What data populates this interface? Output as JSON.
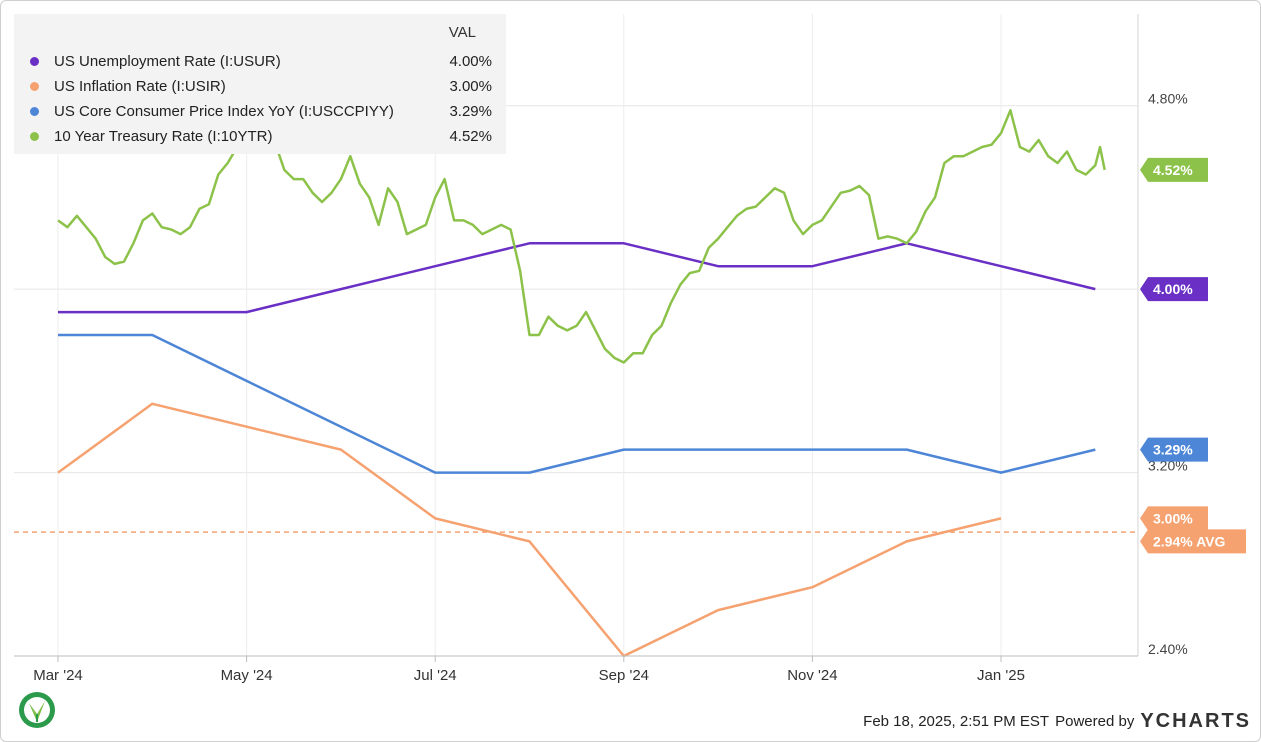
{
  "legend": {
    "header": "VAL",
    "items": [
      {
        "name": "US Unemployment Rate (I:USUR)",
        "value": "4.00%",
        "color": "#6a2fc4"
      },
      {
        "name": "US Inflation Rate (I:USIR)",
        "value": "3.00%",
        "color": "#f5a270"
      },
      {
        "name": "US Core Consumer Price Index YoY (I:USCCPIYY)",
        "value": "3.29%",
        "color": "#4d86d6"
      },
      {
        "name": "10 Year Treasury Rate (I:10YTR)",
        "value": "4.52%",
        "color": "#8cc24a"
      }
    ]
  },
  "footer": {
    "timestamp": "Feb 18, 2025, 2:51 PM EST",
    "powered": "Powered by",
    "brand": "YCHARTS"
  },
  "chart_data": {
    "type": "line",
    "x_ticks": [
      "Mar '24",
      "May '24",
      "Jul '24",
      "Sep '24",
      "Nov '24",
      "Jan '25"
    ],
    "x_tick_months": [
      0,
      2,
      4,
      6,
      8,
      10
    ],
    "y_ticks": [
      "4.80%",
      "3.20%",
      "2.40%"
    ],
    "y_tick_values": [
      4.8,
      3.2,
      2.4
    ],
    "gridlines_y": [
      4.8,
      4.0,
      3.2
    ],
    "ylim": [
      2.4,
      5.2
    ],
    "grid": true,
    "legend_position": "top-left",
    "series": [
      {
        "name": "US Unemployment Rate (I:USUR)",
        "color": "#6a2fc4",
        "end_label": "4.00%",
        "points": [
          [
            0,
            3.9
          ],
          [
            1,
            3.9
          ],
          [
            2,
            3.9
          ],
          [
            3,
            4.0
          ],
          [
            4,
            4.1
          ],
          [
            5,
            4.2
          ],
          [
            6,
            4.2
          ],
          [
            7,
            4.1
          ],
          [
            8,
            4.1
          ],
          [
            9,
            4.2
          ],
          [
            10,
            4.1
          ],
          [
            11,
            4.0
          ]
        ]
      },
      {
        "name": "US Inflation Rate (I:USIR)",
        "color": "#f5a270",
        "end_label": "3.00%",
        "points": [
          [
            0,
            3.2
          ],
          [
            1,
            3.5
          ],
          [
            2,
            3.4
          ],
          [
            3,
            3.3
          ],
          [
            4,
            3.0
          ],
          [
            5,
            2.9
          ],
          [
            6,
            2.4
          ],
          [
            7,
            2.6
          ],
          [
            8,
            2.7
          ],
          [
            9,
            2.9
          ],
          [
            10,
            3.0
          ]
        ],
        "average": {
          "value": 2.94,
          "label": "2.94% AVG"
        }
      },
      {
        "name": "US Core Consumer Price Index YoY (I:USCCPIYY)",
        "color": "#4d86d6",
        "end_label": "3.29%",
        "points": [
          [
            0,
            3.8
          ],
          [
            1,
            3.8
          ],
          [
            2,
            3.6
          ],
          [
            3,
            3.4
          ],
          [
            4,
            3.2
          ],
          [
            5,
            3.2
          ],
          [
            6,
            3.3
          ],
          [
            7,
            3.3
          ],
          [
            8,
            3.3
          ],
          [
            9,
            3.3
          ],
          [
            10,
            3.2
          ],
          [
            11,
            3.3
          ]
        ]
      },
      {
        "name": "10 Year Treasury Rate (I:10YTR)",
        "color": "#8cc24a",
        "end_label": "4.52%",
        "points": [
          [
            0,
            4.3
          ],
          [
            0.1,
            4.27
          ],
          [
            0.2,
            4.32
          ],
          [
            0.3,
            4.27
          ],
          [
            0.4,
            4.22
          ],
          [
            0.5,
            4.14
          ],
          [
            0.6,
            4.11
          ],
          [
            0.7,
            4.12
          ],
          [
            0.8,
            4.2
          ],
          [
            0.9,
            4.3
          ],
          [
            1,
            4.33
          ],
          [
            1.1,
            4.27
          ],
          [
            1.2,
            4.26
          ],
          [
            1.3,
            4.24
          ],
          [
            1.4,
            4.27
          ],
          [
            1.5,
            4.35
          ],
          [
            1.6,
            4.37
          ],
          [
            1.7,
            4.5
          ],
          [
            1.8,
            4.55
          ],
          [
            1.9,
            4.62
          ],
          [
            2,
            4.64
          ],
          [
            2.1,
            4.68
          ],
          [
            2.2,
            4.69
          ],
          [
            2.3,
            4.64
          ],
          [
            2.4,
            4.52
          ],
          [
            2.5,
            4.48
          ],
          [
            2.6,
            4.48
          ],
          [
            2.7,
            4.42
          ],
          [
            2.8,
            4.38
          ],
          [
            2.9,
            4.42
          ],
          [
            3,
            4.48
          ],
          [
            3.1,
            4.58
          ],
          [
            3.2,
            4.46
          ],
          [
            3.3,
            4.4
          ],
          [
            3.4,
            4.28
          ],
          [
            3.5,
            4.44
          ],
          [
            3.6,
            4.38
          ],
          [
            3.7,
            4.24
          ],
          [
            3.8,
            4.26
          ],
          [
            3.9,
            4.28
          ],
          [
            4,
            4.4
          ],
          [
            4.1,
            4.48
          ],
          [
            4.2,
            4.3
          ],
          [
            4.3,
            4.3
          ],
          [
            4.4,
            4.28
          ],
          [
            4.5,
            4.24
          ],
          [
            4.6,
            4.26
          ],
          [
            4.7,
            4.28
          ],
          [
            4.8,
            4.26
          ],
          [
            4.9,
            4.08
          ],
          [
            5,
            3.8
          ],
          [
            5.1,
            3.8
          ],
          [
            5.2,
            3.88
          ],
          [
            5.3,
            3.84
          ],
          [
            5.4,
            3.82
          ],
          [
            5.5,
            3.84
          ],
          [
            5.6,
            3.9
          ],
          [
            5.7,
            3.82
          ],
          [
            5.8,
            3.74
          ],
          [
            5.9,
            3.7
          ],
          [
            6,
            3.68
          ],
          [
            6.1,
            3.72
          ],
          [
            6.2,
            3.72
          ],
          [
            6.3,
            3.8
          ],
          [
            6.4,
            3.84
          ],
          [
            6.5,
            3.94
          ],
          [
            6.6,
            4.02
          ],
          [
            6.7,
            4.07
          ],
          [
            6.8,
            4.08
          ],
          [
            6.9,
            4.18
          ],
          [
            7,
            4.22
          ],
          [
            7.1,
            4.27
          ],
          [
            7.2,
            4.32
          ],
          [
            7.3,
            4.35
          ],
          [
            7.4,
            4.36
          ],
          [
            7.5,
            4.4
          ],
          [
            7.6,
            4.44
          ],
          [
            7.7,
            4.42
          ],
          [
            7.8,
            4.3
          ],
          [
            7.9,
            4.24
          ],
          [
            8,
            4.28
          ],
          [
            8.1,
            4.3
          ],
          [
            8.2,
            4.36
          ],
          [
            8.3,
            4.42
          ],
          [
            8.4,
            4.43
          ],
          [
            8.5,
            4.45
          ],
          [
            8.6,
            4.41
          ],
          [
            8.7,
            4.22
          ],
          [
            8.8,
            4.23
          ],
          [
            8.9,
            4.22
          ],
          [
            9,
            4.2
          ],
          [
            9.1,
            4.25
          ],
          [
            9.2,
            4.34
          ],
          [
            9.3,
            4.4
          ],
          [
            9.4,
            4.55
          ],
          [
            9.5,
            4.58
          ],
          [
            9.6,
            4.58
          ],
          [
            9.7,
            4.6
          ],
          [
            9.8,
            4.62
          ],
          [
            9.9,
            4.63
          ],
          [
            10,
            4.68
          ],
          [
            10.1,
            4.78
          ],
          [
            10.2,
            4.62
          ],
          [
            10.3,
            4.6
          ],
          [
            10.4,
            4.65
          ],
          [
            10.5,
            4.58
          ],
          [
            10.6,
            4.55
          ],
          [
            10.7,
            4.6
          ],
          [
            10.8,
            4.52
          ],
          [
            10.9,
            4.5
          ],
          [
            11,
            4.54
          ],
          [
            11.05,
            4.62
          ],
          [
            11.1,
            4.52
          ]
        ]
      }
    ]
  }
}
